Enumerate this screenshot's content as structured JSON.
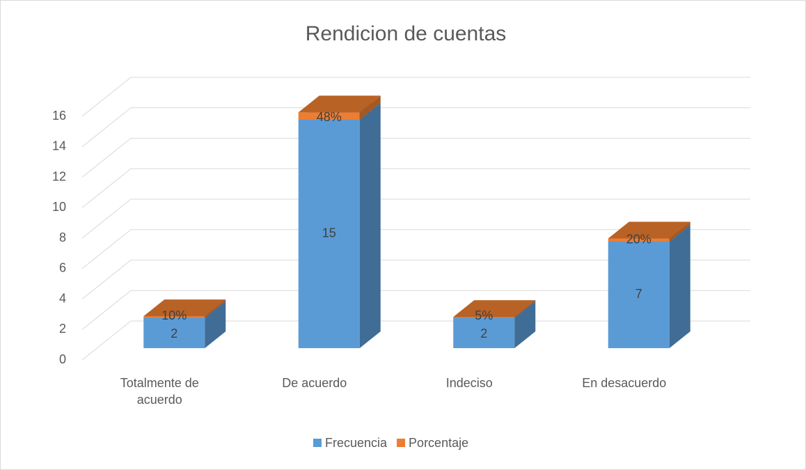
{
  "chart_data": {
    "type": "bar3d_stacked",
    "title": "Rendicion de cuentas",
    "categories": [
      "Totalmente de acuerdo",
      "De acuerdo",
      "Indeciso",
      "En desacuerdo"
    ],
    "series": [
      {
        "name": "Frecuencia",
        "color": "#5b9bd5",
        "values": [
          2,
          15,
          2,
          7
        ]
      },
      {
        "name": "Porcentaje",
        "color": "#ed7d31",
        "values": [
          0.1,
          0.48,
          0.05,
          0.2
        ],
        "value_labels": [
          "10%",
          "48%",
          "5%",
          "20%"
        ]
      }
    ],
    "ylim": [
      0,
      16
    ],
    "yticks": [
      0,
      2,
      4,
      6,
      8,
      10,
      12,
      14,
      16
    ],
    "grid": true,
    "legend": "bottom"
  }
}
